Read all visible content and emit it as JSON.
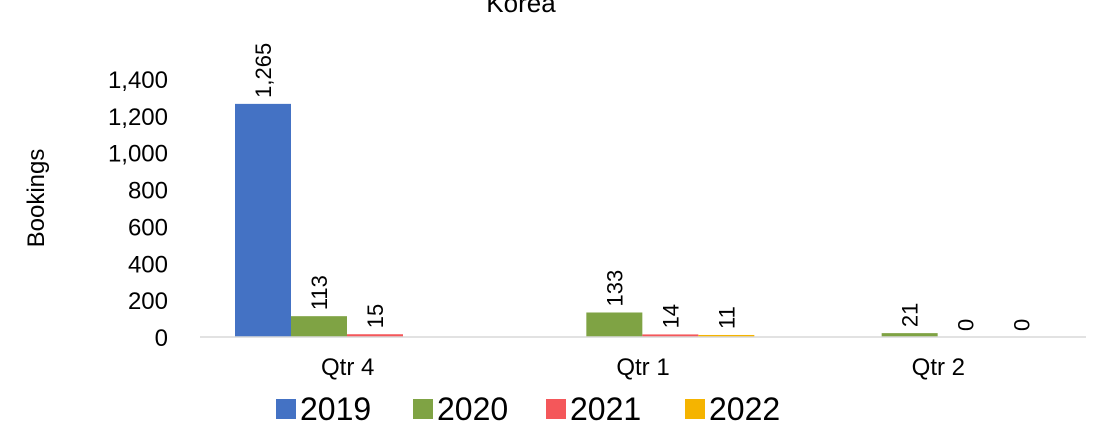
{
  "chart_data": {
    "type": "bar",
    "title": "Korea",
    "xlabel": "",
    "ylabel": "Bookings",
    "ylim": [
      0,
      1400
    ],
    "yticks": [
      0,
      200,
      400,
      600,
      800,
      1000,
      1200,
      1400
    ],
    "ytick_labels": [
      "0",
      "200",
      "400",
      "600",
      "800",
      "1,000",
      "1,200",
      "1,400"
    ],
    "categories": [
      "Qtr 4",
      "Qtr 1",
      "Qtr 2"
    ],
    "series": [
      {
        "name": "2019",
        "color": "#4472C4",
        "values": [
          1265,
          null,
          null
        ],
        "labels": [
          "1,265",
          "",
          ""
        ]
      },
      {
        "name": "2020",
        "color": "#7FA344",
        "values": [
          113,
          133,
          21
        ],
        "labels": [
          "113",
          "133",
          "21"
        ]
      },
      {
        "name": "2021",
        "color": "#F4575A",
        "values": [
          15,
          14,
          0
        ],
        "labels": [
          "15",
          "14",
          "0"
        ]
      },
      {
        "name": "2022",
        "color": "#F5B400",
        "values": [
          null,
          11,
          0
        ],
        "labels": [
          "",
          "11",
          "0"
        ]
      }
    ],
    "grid": false,
    "legend_position": "bottom"
  }
}
